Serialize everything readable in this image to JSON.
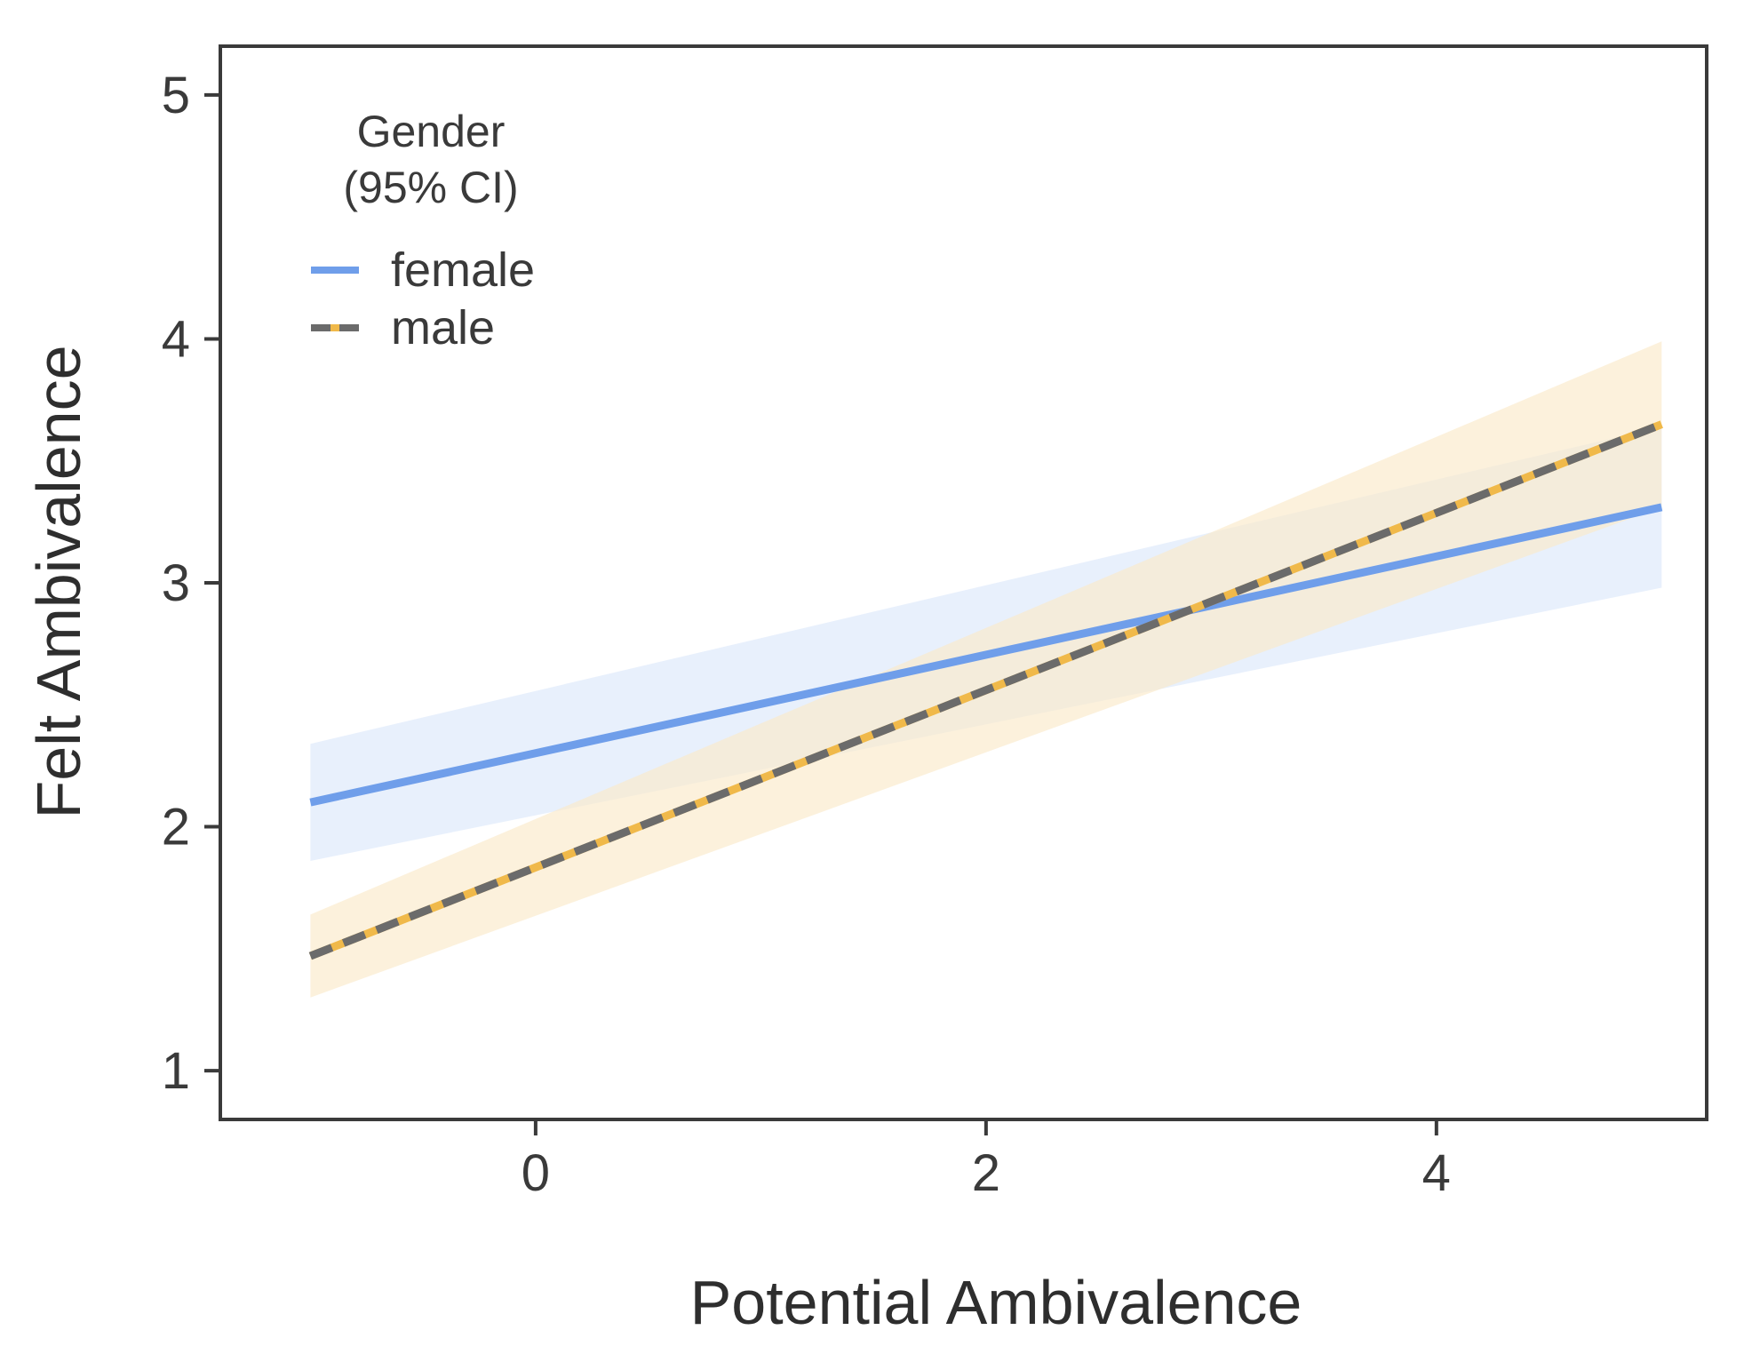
{
  "chart_data": {
    "type": "line",
    "title": "",
    "xlabel": "Potential Ambivalence",
    "ylabel": "Felt Ambivalence",
    "xlim": [
      -1.4,
      5.2
    ],
    "ylim": [
      0.8,
      5.2
    ],
    "xticks": [
      0,
      2,
      4
    ],
    "yticks": [
      1,
      2,
      3,
      4,
      5
    ],
    "grid": false,
    "legend": {
      "title_line1": "Gender",
      "title_line2": "(95% CI)",
      "position": "top-left"
    },
    "series": [
      {
        "name": "female",
        "color": "#6f9eea",
        "band_color": "#dce8fb",
        "style": "solid",
        "x": [
          -1,
          5
        ],
        "y": [
          2.1,
          3.31
        ],
        "ci_lower": [
          1.86,
          2.98
        ],
        "ci_upper": [
          2.34,
          3.64
        ]
      },
      {
        "name": "male",
        "color": "#f0b94a",
        "dash_color": "#6b6b6b",
        "band_color": "#fbe9c9",
        "style": "dashed",
        "x": [
          -1,
          5
        ],
        "y": [
          1.47,
          3.65
        ],
        "ci_lower": [
          1.3,
          3.31
        ],
        "ci_upper": [
          1.64,
          3.99
        ]
      }
    ]
  }
}
